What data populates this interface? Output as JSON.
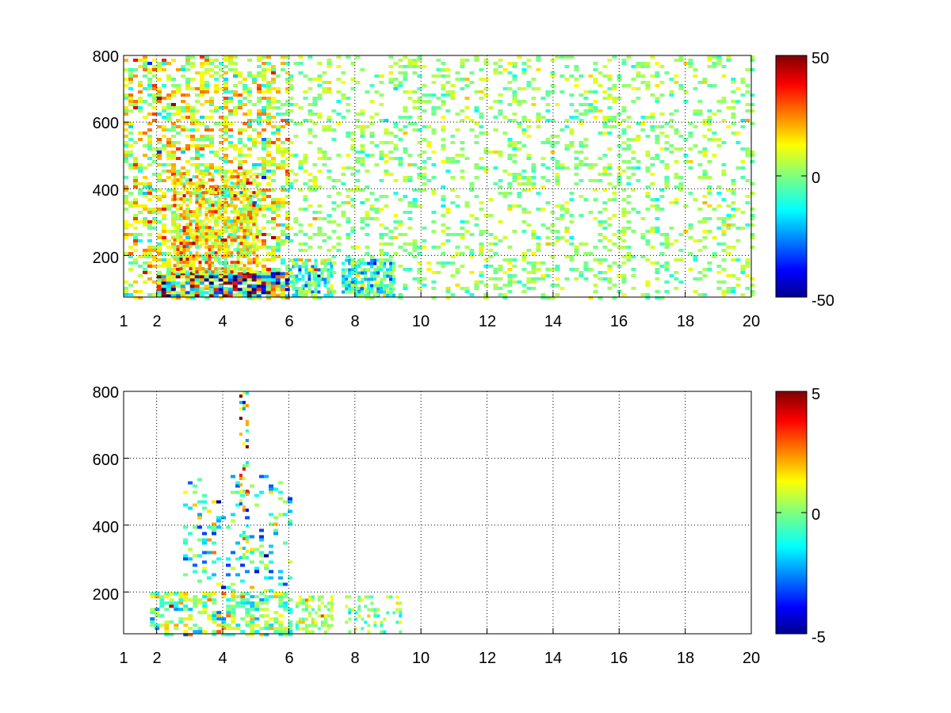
{
  "chart_data": [
    {
      "type": "heatmap",
      "title": "",
      "xlabel": "",
      "ylabel": "",
      "xlim": [
        1,
        20
      ],
      "ylim": [
        75,
        800
      ],
      "x_ticks": [
        1,
        2,
        4,
        6,
        8,
        10,
        12,
        14,
        16,
        18,
        20
      ],
      "y_ticks": [
        200,
        400,
        600,
        800
      ],
      "x_tick_labels": [
        "1",
        "2",
        "4",
        "6",
        "8",
        "10",
        "12",
        "14",
        "16",
        "18",
        "20"
      ],
      "y_tick_labels": [
        "200",
        "400",
        "600",
        "800"
      ],
      "grid": true,
      "colormap": "jet",
      "colorbar": {
        "min": -50,
        "max": 50,
        "tick_labels": [
          "50",
          "0",
          "-50"
        ]
      },
      "regions": [
        {
          "x": [
            1,
            6
          ],
          "y": [
            75,
            800
          ],
          "density": 0.45,
          "mean": 8,
          "spread": 12
        },
        {
          "x": [
            2,
            6
          ],
          "y": [
            80,
            150
          ],
          "density": 0.9,
          "mean": 0,
          "spread": 35
        },
        {
          "x": [
            2.5,
            5
          ],
          "y": [
            150,
            450
          ],
          "density": 0.6,
          "mean": 15,
          "spread": 12
        },
        {
          "x": [
            6,
            7.3
          ],
          "y": [
            80,
            190
          ],
          "density": 0.7,
          "mean": -8,
          "spread": 15
        },
        {
          "x": [
            7.6,
            9.2
          ],
          "y": [
            80,
            190
          ],
          "density": 0.75,
          "mean": -12,
          "spread": 10
        },
        {
          "x": [
            6,
            20
          ],
          "y": [
            75,
            800
          ],
          "density": 0.22,
          "mean": 2,
          "spread": 6
        }
      ]
    },
    {
      "type": "heatmap",
      "title": "",
      "xlabel": "",
      "ylabel": "",
      "xlim": [
        1,
        20
      ],
      "ylim": [
        75,
        800
      ],
      "x_ticks": [
        1,
        2,
        4,
        6,
        8,
        10,
        12,
        14,
        16,
        18,
        20
      ],
      "y_ticks": [
        200,
        400,
        600,
        800
      ],
      "x_tick_labels": [
        "1",
        "2",
        "4",
        "6",
        "8",
        "10",
        "12",
        "14",
        "16",
        "18",
        "20"
      ],
      "y_tick_labels": [
        "200",
        "400",
        "600",
        "800"
      ],
      "grid": true,
      "colormap": "jet",
      "colorbar": {
        "min": -5,
        "max": 5,
        "tick_labels": [
          "5",
          "0",
          "-5"
        ]
      },
      "regions": [
        {
          "x": [
            1.8,
            6
          ],
          "y": [
            75,
            200
          ],
          "density": 0.55,
          "mean": 0,
          "spread": 1.2
        },
        {
          "x": [
            2.8,
            6
          ],
          "y": [
            200,
            550
          ],
          "density": 0.18,
          "mean": -1,
          "spread": 1.5
        },
        {
          "x": [
            4.5,
            4.7
          ],
          "y": [
            300,
            800
          ],
          "density": 0.25,
          "mean": 1,
          "spread": 2.5
        },
        {
          "x": [
            6.2,
            7.3
          ],
          "y": [
            80,
            190
          ],
          "density": 0.4,
          "mean": 0.5,
          "spread": 0.8
        },
        {
          "x": [
            7.7,
            9.4
          ],
          "y": [
            80,
            190
          ],
          "density": 0.3,
          "mean": 0,
          "spread": 0.8
        }
      ]
    }
  ]
}
